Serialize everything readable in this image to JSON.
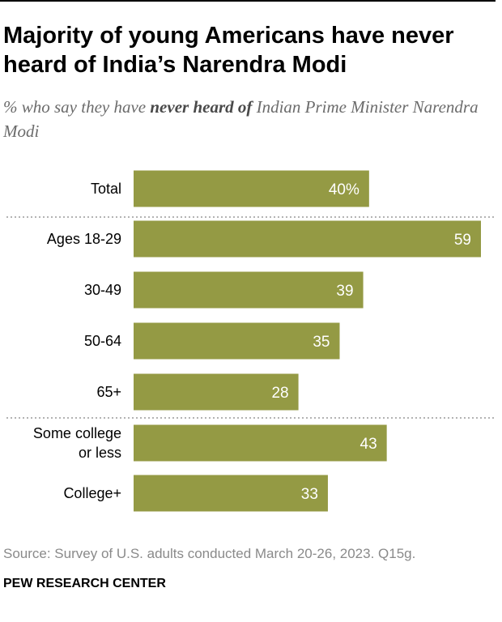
{
  "header": {
    "title": "Majority of young Americans have never heard of India’s Narendra Modi",
    "subtitle_pre": "% who say they have ",
    "subtitle_bold": "never heard of",
    "subtitle_post": " Indian Prime Minister Narendra Modi"
  },
  "footer": {
    "source": "Source: Survey of U.S. adults conducted March 20-26, 2023. Q15g.",
    "brand": "PEW RESEARCH CENTER"
  },
  "colors": {
    "bar": "#949a44",
    "label": "#ffffff",
    "divider": "#9a9a9a"
  },
  "chart_data": {
    "type": "bar",
    "orientation": "horizontal",
    "title": "Majority of young Americans have never heard of India’s Narendra Modi",
    "subtitle": "% who say they have never heard of Indian Prime Minister Narendra Modi",
    "categories": [
      [
        "Total"
      ],
      [
        "Ages 18-29"
      ],
      [
        "30-49"
      ],
      [
        "50-64"
      ],
      [
        "65+"
      ],
      [
        "Some college",
        "or less"
      ],
      [
        "College+"
      ]
    ],
    "values": [
      40,
      59,
      39,
      35,
      28,
      43,
      33
    ],
    "value_labels": [
      "40%",
      "59",
      "39",
      "35",
      "28",
      "43",
      "33"
    ],
    "groups_dividers_after": [
      0,
      4
    ],
    "xlim": [
      0,
      59
    ],
    "grid": false,
    "legend": "none"
  }
}
